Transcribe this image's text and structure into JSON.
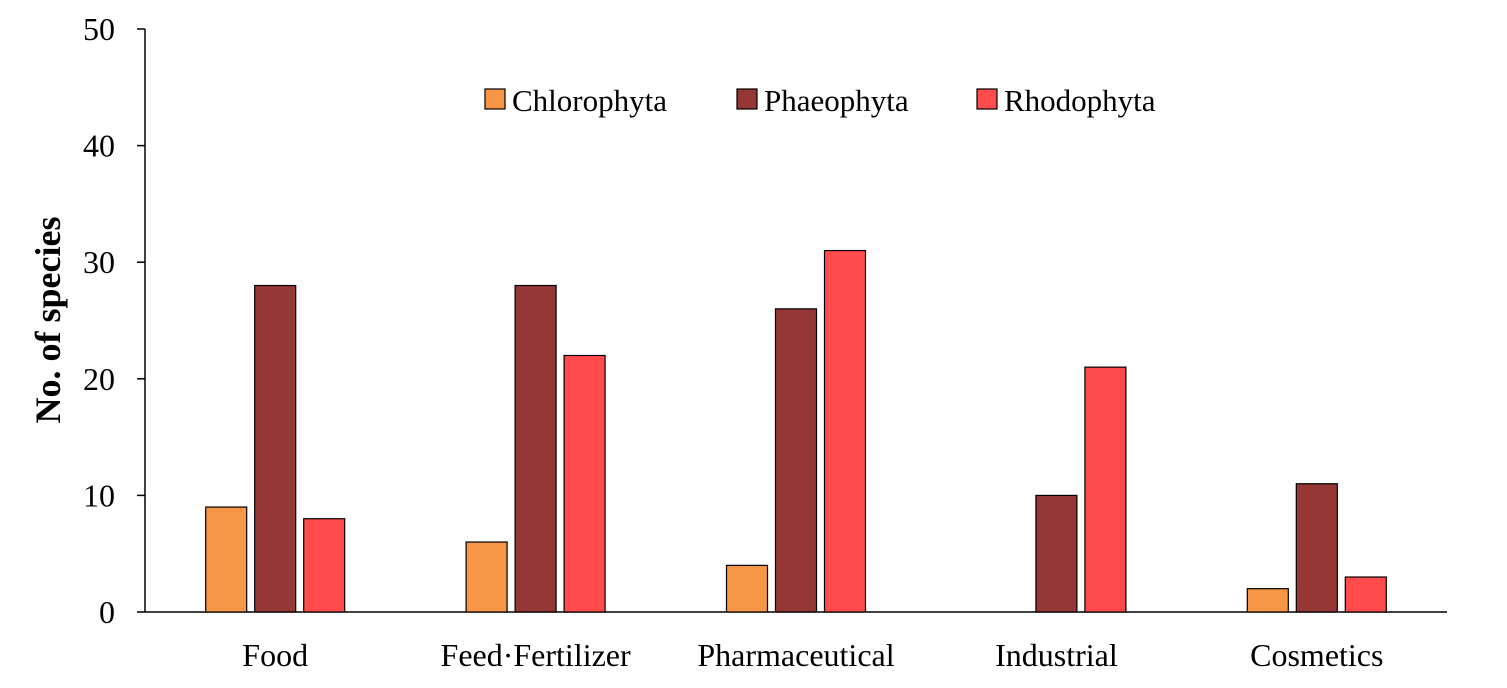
{
  "chart_data": {
    "type": "bar",
    "title": "",
    "xlabel": "",
    "ylabel": "No. of species",
    "ylim": [
      0,
      50
    ],
    "yticks": [
      0,
      10,
      20,
      30,
      40,
      50
    ],
    "grid": false,
    "legend_position": "top-center",
    "categories": [
      "Food",
      "Feed·Fertilizer",
      "Pharmaceutical",
      "Industrial",
      "Cosmetics"
    ],
    "series": [
      {
        "name": "Chlorophyta",
        "color": "#F79646",
        "values": [
          9,
          6,
          4,
          0,
          2
        ]
      },
      {
        "name": "Phaeophyta",
        "color": "#953735",
        "values": [
          28,
          28,
          26,
          10,
          11
        ]
      },
      {
        "name": "Rhodophyta",
        "color": "#FF4B4B",
        "values": [
          8,
          22,
          31,
          21,
          3
        ]
      }
    ]
  }
}
